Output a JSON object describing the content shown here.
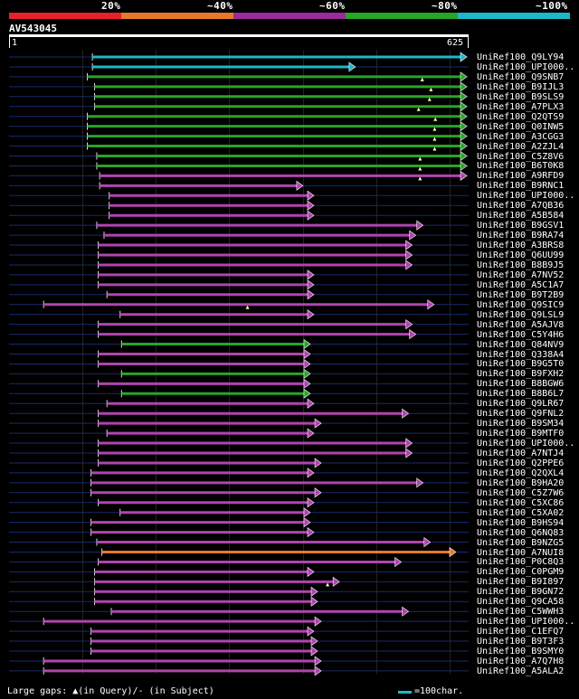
{
  "legend": {
    "labels": [
      "20%",
      "~40%",
      "~60%",
      "~80%",
      "~100%"
    ],
    "colors": [
      "#e8202a",
      "#e8782a",
      "#9c2a9c",
      "#28a428",
      "#1cb8c8"
    ]
  },
  "query": {
    "id": "AV543045",
    "start_label": "1",
    "end_label": "625",
    "length": 625
  },
  "hits": [
    {
      "label": "UniRef100_Q9LY94",
      "color": "cyan",
      "s": 112,
      "e": 625,
      "line_s": 0
    },
    {
      "label": "UniRef100_UPI000..",
      "color": "cyan",
      "s": 112,
      "e": 472,
      "line_s": 0
    },
    {
      "label": "UniRef100_Q9SNB7",
      "color": "green",
      "s": 105,
      "e": 625,
      "line_s": 0,
      "gaps": [
        565
      ]
    },
    {
      "label": "UniRef100_B9IJL3",
      "color": "green",
      "s": 115,
      "e": 625,
      "line_s": 0,
      "gaps": [
        577
      ]
    },
    {
      "label": "UniRef100_B9SLS9",
      "color": "green",
      "s": 115,
      "e": 625,
      "line_s": 0,
      "gaps": [
        575
      ]
    },
    {
      "label": "UniRef100_A7PLX3",
      "color": "green",
      "s": 115,
      "e": 625,
      "line_s": 0,
      "gaps": [
        560
      ]
    },
    {
      "label": "UniRef100_Q2QTS9",
      "color": "green",
      "s": 105,
      "e": 625,
      "line_s": 0,
      "gaps": [
        583
      ]
    },
    {
      "label": "UniRef100_Q0INW5",
      "color": "green",
      "s": 105,
      "e": 625,
      "line_s": 0,
      "gaps": [
        582
      ]
    },
    {
      "label": "UniRef100_A3CGG3",
      "color": "green",
      "s": 105,
      "e": 625,
      "line_s": 0,
      "gaps": [
        582
      ]
    },
    {
      "label": "UniRef100_A2ZJL4",
      "color": "green",
      "s": 105,
      "e": 625,
      "line_s": 0,
      "gaps": [
        582
      ]
    },
    {
      "label": "UniRef100_C5Z8V6",
      "color": "green",
      "s": 118,
      "e": 625,
      "line_s": 0,
      "gaps": [
        562
      ]
    },
    {
      "label": "UniRef100_B6T0K8",
      "color": "green",
      "s": 118,
      "e": 625,
      "line_s": 0,
      "gaps": [
        562
      ]
    },
    {
      "label": "UniRef100_A9RFD9",
      "color": "purple",
      "s": 122,
      "e": 625,
      "line_s": 0,
      "gaps": [
        562
      ]
    },
    {
      "label": "UniRef100_B9RNC1",
      "color": "purple",
      "s": 122,
      "e": 400,
      "line_s": 0
    },
    {
      "label": "UniRef100_UPI000..",
      "color": "purple",
      "s": 135,
      "e": 415,
      "line_s": 0
    },
    {
      "label": "UniRef100_A7QB36",
      "color": "purple",
      "s": 135,
      "e": 415,
      "line_s": 0
    },
    {
      "label": "UniRef100_A5B584",
      "color": "purple",
      "s": 135,
      "e": 415,
      "line_s": 0
    },
    {
      "label": "UniRef100_B9GSV1",
      "color": "purple",
      "s": 118,
      "e": 565,
      "line_s": 0
    },
    {
      "label": "UniRef100_B9RA74",
      "color": "purple",
      "s": 128,
      "e": 555,
      "line_s": 0
    },
    {
      "label": "UniRef100_A3BRS8",
      "color": "purple",
      "s": 120,
      "e": 550,
      "line_s": 0
    },
    {
      "label": "UniRef100_Q6UU99",
      "color": "purple",
      "s": 120,
      "e": 550,
      "line_s": 0
    },
    {
      "label": "UniRef100_B8B9J5",
      "color": "purple",
      "s": 120,
      "e": 550,
      "line_s": 0
    },
    {
      "label": "UniRef100_A7NV52",
      "color": "purple",
      "s": 120,
      "e": 415,
      "line_s": 0
    },
    {
      "label": "UniRef100_A5C1A7",
      "color": "purple",
      "s": 120,
      "e": 415,
      "line_s": 0
    },
    {
      "label": "UniRef100_B9T2B9",
      "color": "purple",
      "s": 132,
      "e": 415,
      "line_s": 0
    },
    {
      "label": "UniRef100_Q9SIC9",
      "color": "purple",
      "s": 45,
      "e": 580,
      "line_s": 0,
      "gaps": [
        325
      ]
    },
    {
      "label": "UniRef100_Q9LSL9",
      "color": "purple",
      "s": 150,
      "e": 415,
      "line_s": 0
    },
    {
      "label": "UniRef100_A5AJV8",
      "color": "purple",
      "s": 120,
      "e": 550,
      "line_s": 0
    },
    {
      "label": "UniRef100_C5Y4H6",
      "color": "purple",
      "s": 120,
      "e": 555,
      "line_s": 0
    },
    {
      "label": "UniRef100_Q84NV9",
      "color": "green",
      "s": 152,
      "e": 410,
      "line_s": 0
    },
    {
      "label": "UniRef100_Q338A4",
      "color": "purple",
      "s": 120,
      "e": 410,
      "line_s": 0
    },
    {
      "label": "UniRef100_B9G5T0",
      "color": "purple",
      "s": 120,
      "e": 410,
      "line_s": 0
    },
    {
      "label": "UniRef100_B9FXH2",
      "color": "green",
      "s": 152,
      "e": 410,
      "line_s": 0
    },
    {
      "label": "UniRef100_B8BGW6",
      "color": "purple",
      "s": 120,
      "e": 410,
      "line_s": 0
    },
    {
      "label": "UniRef100_B8B6L7",
      "color": "green",
      "s": 152,
      "e": 410,
      "line_s": 0
    },
    {
      "label": "UniRef100_Q9LR67",
      "color": "purple",
      "s": 132,
      "e": 415,
      "line_s": 0
    },
    {
      "label": "UniRef100_Q9FNL2",
      "color": "purple",
      "s": 120,
      "e": 545,
      "line_s": 0
    },
    {
      "label": "UniRef100_B9SM34",
      "color": "purple",
      "s": 120,
      "e": 425,
      "line_s": 0
    },
    {
      "label": "UniRef100_B9MTF0",
      "color": "purple",
      "s": 132,
      "e": 415,
      "line_s": 0
    },
    {
      "label": "UniRef100_UPI000..",
      "color": "purple",
      "s": 120,
      "e": 550,
      "line_s": 0
    },
    {
      "label": "UniRef100_A7NTJ4",
      "color": "purple",
      "s": 120,
      "e": 550,
      "line_s": 0
    },
    {
      "label": "UniRef100_Q2PPE6",
      "color": "purple",
      "s": 120,
      "e": 425,
      "line_s": 0
    },
    {
      "label": "UniRef100_Q2QXL4",
      "color": "purple",
      "s": 110,
      "e": 415,
      "line_s": 0
    },
    {
      "label": "UniRef100_B9HA20",
      "color": "purple",
      "s": 110,
      "e": 565,
      "line_s": 0
    },
    {
      "label": "UniRef100_C5Z7W6",
      "color": "purple",
      "s": 110,
      "e": 425,
      "line_s": 0
    },
    {
      "label": "UniRef100_C5XC86",
      "color": "purple",
      "s": 120,
      "e": 415,
      "line_s": 0
    },
    {
      "label": "UniRef100_C5XA02",
      "color": "purple",
      "s": 150,
      "e": 410,
      "line_s": 0
    },
    {
      "label": "UniRef100_B9HS94",
      "color": "purple",
      "s": 110,
      "e": 410,
      "line_s": 0
    },
    {
      "label": "UniRef100_Q6NQ83",
      "color": "purple",
      "s": 110,
      "e": 415,
      "line_s": 0
    },
    {
      "label": "UniRef100_B9NZG5",
      "color": "purple",
      "s": 118,
      "e": 575,
      "line_s": 0
    },
    {
      "label": "UniRef100_A7NUI8",
      "color": "orange",
      "s": 125,
      "e": 610,
      "line_s": 0
    },
    {
      "label": "UniRef100_P0C8Q3",
      "color": "purple",
      "s": 120,
      "e": 535,
      "line_s": 0
    },
    {
      "label": "UniRef100_C0PGM9",
      "color": "purple",
      "s": 115,
      "e": 415,
      "line_s": 0
    },
    {
      "label": "UniRef100_B9I897",
      "color": "purple",
      "s": 115,
      "e": 450,
      "line_s": 0,
      "gaps": [
        435
      ]
    },
    {
      "label": "UniRef100_B9GN72",
      "color": "purple",
      "s": 115,
      "e": 420,
      "line_s": 0
    },
    {
      "label": "UniRef100_Q9CA58",
      "color": "purple",
      "s": 115,
      "e": 420,
      "line_s": 0
    },
    {
      "label": "UniRef100_C5WWH3",
      "color": "purple",
      "s": 138,
      "e": 545,
      "line_s": 0
    },
    {
      "label": "UniRef100_UPI000..",
      "color": "purple",
      "s": 45,
      "e": 425,
      "line_s": 0
    },
    {
      "label": "UniRef100_C1EFQ7",
      "color": "purple",
      "s": 110,
      "e": 415,
      "line_s": 0
    },
    {
      "label": "UniRef100_B9T3F3",
      "color": "purple",
      "s": 110,
      "e": 420,
      "line_s": 0
    },
    {
      "label": "UniRef100_B9SMY0",
      "color": "purple",
      "s": 110,
      "e": 420,
      "line_s": 0
    },
    {
      "label": "UniRef100_A7Q7H8",
      "color": "purple",
      "s": 45,
      "e": 425,
      "line_s": 0
    },
    {
      "label": "UniRef100_A5ALA2",
      "color": "purple",
      "s": 45,
      "e": 425,
      "line_s": 0
    }
  ],
  "footer": {
    "text": "Large gaps: ▲(in Query)/- (in Subject)",
    "scale_label": "=100char."
  }
}
